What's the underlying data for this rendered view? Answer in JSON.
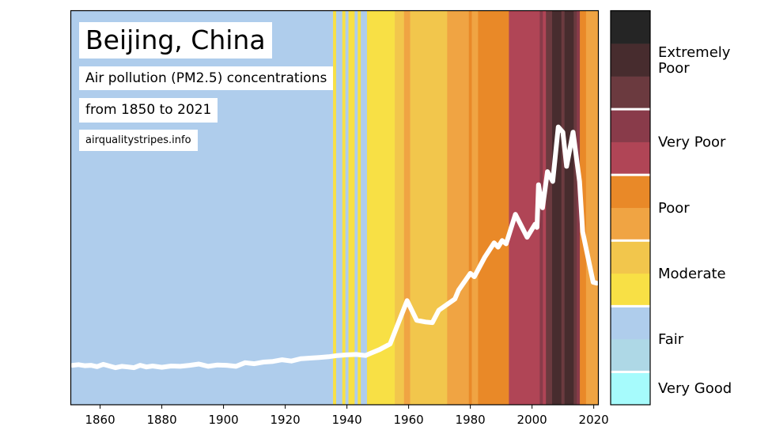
{
  "chart_data": {
    "type": "stripes-line",
    "title": "Beijing, China",
    "subtitle_lines": [
      "Air pollution (PM2.5) concentrations",
      "from 1850 to 2021"
    ],
    "source": "airqualitystripes.info",
    "xlim": [
      1850.5,
      2021.5
    ],
    "ylim": [
      0,
      12
    ],
    "x_ticks": [
      1860,
      1880,
      1900,
      1920,
      1940,
      1960,
      1980,
      2000,
      2020
    ],
    "grid": false,
    "levels": [
      {
        "color": "#a6fbfc"
      },
      {
        "color": "#aed8e6"
      },
      {
        "color": "#afcdec"
      },
      {
        "color": "#f8e045"
      },
      {
        "color": "#f2c64c"
      },
      {
        "color": "#f0a443"
      },
      {
        "color": "#e98928"
      },
      {
        "color": "#b04556"
      },
      {
        "color": "#893b4a"
      },
      {
        "color": "#6b3a3f"
      },
      {
        "color": "#472c2e"
      },
      {
        "color": "#252525"
      }
    ],
    "category_labels": [
      {
        "label": "Very Good",
        "at_level": 0.5
      },
      {
        "label": "Fair",
        "at_level": 2
      },
      {
        "label": "Moderate",
        "at_level": 4
      },
      {
        "label": "Poor",
        "at_level": 6
      },
      {
        "label": "Very Poor",
        "at_level": 8
      },
      {
        "label": "Extremely Poor",
        "at_level": 10.5
      }
    ],
    "stripes": [
      {
        "from": 1851,
        "to": 1935,
        "level": 2
      },
      {
        "from": 1936,
        "to": 1936,
        "level": 3
      },
      {
        "from": 1937,
        "to": 1938,
        "level": 2
      },
      {
        "from": 1939,
        "to": 1939,
        "level": 3
      },
      {
        "from": 1940,
        "to": 1940,
        "level": 2
      },
      {
        "from": 1941,
        "to": 1942,
        "level": 3
      },
      {
        "from": 1943,
        "to": 1943,
        "level": 2
      },
      {
        "from": 1944,
        "to": 1944,
        "level": 3
      },
      {
        "from": 1945,
        "to": 1946,
        "level": 2
      },
      {
        "from": 1947,
        "to": 1955,
        "level": 3
      },
      {
        "from": 1956,
        "to": 1958,
        "level": 4
      },
      {
        "from": 1959,
        "to": 1960,
        "level": 5
      },
      {
        "from": 1961,
        "to": 1972,
        "level": 4
      },
      {
        "from": 1973,
        "to": 1979,
        "level": 5
      },
      {
        "from": 1980,
        "to": 1980,
        "level": 6
      },
      {
        "from": 1981,
        "to": 1982,
        "level": 5
      },
      {
        "from": 1983,
        "to": 1992,
        "level": 6
      },
      {
        "from": 1993,
        "to": 2002,
        "level": 7
      },
      {
        "from": 2003,
        "to": 2003,
        "level": 8
      },
      {
        "from": 2004,
        "to": 2004,
        "level": 7
      },
      {
        "from": 2005,
        "to": 2006,
        "level": 9
      },
      {
        "from": 2007,
        "to": 2009,
        "level": 10
      },
      {
        "from": 2010,
        "to": 2010,
        "level": 9
      },
      {
        "from": 2011,
        "to": 2013,
        "level": 10
      },
      {
        "from": 2014,
        "to": 2014,
        "level": 9
      },
      {
        "from": 2015,
        "to": 2015,
        "level": 8
      },
      {
        "from": 2016,
        "to": 2017,
        "level": 6
      },
      {
        "from": 2018,
        "to": 2021,
        "level": 5
      }
    ],
    "line": {
      "color": "#ffffff",
      "x": [
        1851,
        1853,
        1855,
        1857,
        1859,
        1861,
        1863,
        1865,
        1867,
        1869,
        1871,
        1873,
        1875,
        1877,
        1880,
        1883,
        1886,
        1889,
        1892,
        1895,
        1898,
        1901,
        1904,
        1907,
        1910,
        1913,
        1916,
        1919,
        1922,
        1925,
        1928,
        1931,
        1934,
        1937,
        1940,
        1943,
        1946,
        1948,
        1950.6,
        1954,
        1959.5,
        1962.6,
        1965.5,
        1967.7,
        1969.8,
        1975,
        1976.2,
        1980,
        1981.3,
        1984.7,
        1987.7,
        1989,
        1990.3,
        1991.6,
        1994.6,
        1998.4,
        2001,
        2001.6,
        2002.1,
        2003.4,
        2005,
        2006.7,
        2008.5,
        2010,
        2011.2,
        2013.3,
        2015.4,
        2016.4,
        2019.8,
        2021
      ],
      "y": [
        1.2,
        1.22,
        1.19,
        1.2,
        1.16,
        1.23,
        1.18,
        1.13,
        1.17,
        1.15,
        1.13,
        1.2,
        1.15,
        1.18,
        1.14,
        1.18,
        1.17,
        1.2,
        1.24,
        1.17,
        1.21,
        1.2,
        1.17,
        1.28,
        1.25,
        1.3,
        1.32,
        1.37,
        1.33,
        1.4,
        1.42,
        1.44,
        1.46,
        1.5,
        1.52,
        1.53,
        1.5,
        1.58,
        1.68,
        1.85,
        3.17,
        2.57,
        2.52,
        2.5,
        2.88,
        3.22,
        3.49,
        4.0,
        3.9,
        4.5,
        4.93,
        4.8,
        5.0,
        4.9,
        5.8,
        5.1,
        5.5,
        5.4,
        6.7,
        6.0,
        7.1,
        6.8,
        8.46,
        8.3,
        7.26,
        8.3,
        6.8,
        5.27,
        3.73,
        3.7
      ]
    }
  }
}
